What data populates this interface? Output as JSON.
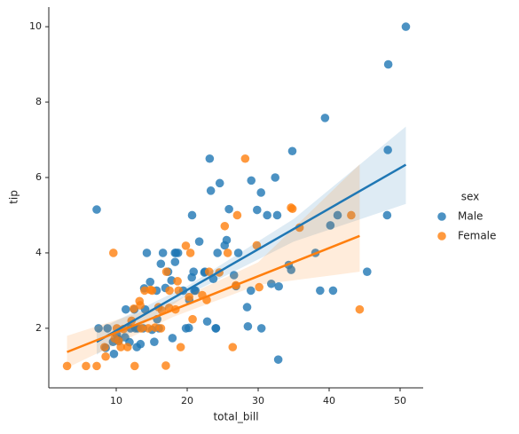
{
  "chart_data": {
    "type": "scatter",
    "x_label": "total_bill",
    "y_label": "tip",
    "legend_title": "sex",
    "legend_position": "right",
    "xlim": [
      0.5,
      53.25
    ],
    "ylim": [
      0.42,
      10.52
    ],
    "xticks": [
      10,
      20,
      30,
      40,
      50
    ],
    "yticks": [
      2,
      4,
      6,
      8,
      10
    ],
    "series": [
      {
        "name": "Male",
        "color": "#1f77b4",
        "x": [
          50.81,
          48.33,
          48.27,
          48.17,
          39.42,
          32.4,
          34.81,
          29.03,
          30.46,
          7.25,
          23.33,
          23.17,
          24.59,
          25.56,
          25.89,
          30.4,
          31.27,
          32.68,
          28.55,
          40.55,
          38.73,
          38.07,
          45.35,
          34.3,
          34.65,
          41.19,
          40.17,
          32.83,
          31.85,
          32.9,
          28.44,
          29.85,
          24.27,
          22.82,
          21.01,
          20.65,
          20.23,
          18.29,
          18.43,
          17.78,
          16.29,
          15.04,
          14.78,
          13.94,
          12.69,
          11.87,
          10.27,
          9.55,
          8.77,
          10.07,
          12.02,
          13.81,
          15.77,
          16.93,
          19.44,
          20.29,
          21.16,
          22.42,
          23.68,
          24.06,
          26.88,
          27.2,
          28.97,
          17.31,
          15.69,
          13.0,
          11.24,
          7.51,
          10.34,
          12.54,
          14.07,
          16.58,
          18.28,
          19.82,
          21.7,
          24.01,
          26.59,
          20.69,
          17.92,
          15.36,
          13.42,
          11.35,
          9.68,
          8.52,
          12.9,
          14.31,
          16.0,
          18.71,
          20.9,
          22.49,
          25.28
        ],
        "values": [
          10,
          9,
          6.73,
          5,
          7.58,
          6,
          6.7,
          5.92,
          2,
          5.15,
          5.65,
          6.5,
          5.85,
          4.34,
          5.16,
          5.6,
          5,
          5,
          2.05,
          3,
          3,
          4,
          3.5,
          3.68,
          3.55,
          5,
          4.73,
          1.17,
          3.18,
          3.11,
          2.56,
          5.14,
          4.0,
          2.18,
          3.0,
          3.35,
          2.01,
          3.76,
          4.0,
          3.27,
          3.71,
          1.96,
          3.23,
          3.06,
          2.0,
          1.63,
          1.71,
          1.64,
          2.0,
          1.83,
          2.0,
          2.0,
          2.24,
          3.07,
          3.0,
          2.75,
          3.0,
          3.48,
          3.31,
          2.0,
          3.12,
          4.0,
          3.0,
          3.5,
          3.0,
          2.0,
          1.76,
          2.0,
          1.66,
          2.5,
          2.5,
          4.0,
          4.0,
          2.0,
          4.3,
          2.0,
          3.41,
          5.0,
          1.74,
          1.64,
          1.58,
          2.5,
          1.32,
          1.48,
          1.5,
          4.0,
          2.0,
          4.0,
          3.5,
          3.5,
          4.2
        ],
        "fit": {
          "x": [
            7.25,
            50.81
          ],
          "y": [
            1.64,
            6.34
          ]
        },
        "band": {
          "x": [
            7.25,
            20,
            35,
            50.81
          ],
          "upper": [
            1.95,
            3.12,
            4.9,
            7.35
          ],
          "lower": [
            1.3,
            2.88,
            4.3,
            5.3
          ]
        }
      },
      {
        "name": "Female",
        "color": "#ff7f0e",
        "x": [
          3.07,
          5.75,
          7.25,
          9.6,
          44.3,
          43.11,
          35.83,
          34.63,
          28.17,
          26.86,
          29.8,
          30.14,
          27.05,
          25.71,
          26.41,
          16.99,
          10.33,
          14.83,
          12.6,
          18.78,
          25.29,
          34.83,
          24.52,
          22.75,
          20.76,
          19.81,
          18.35,
          17.46,
          16.45,
          15.48,
          14.52,
          13.39,
          12.48,
          11.59,
          10.65,
          9.78,
          8.51,
          13.28,
          15.06,
          16.31,
          17.51,
          19.08,
          20.27,
          22.12,
          23.1,
          11.02,
          12.16,
          14.0,
          15.95,
          17.07,
          18.64,
          20.45,
          8.35,
          10.09,
          13.51
        ],
        "values": [
          1,
          1,
          1,
          4,
          2.5,
          5,
          4.67,
          5.2,
          6.5,
          3.14,
          4.2,
          3.09,
          5,
          4,
          1.5,
          1.01,
          1.67,
          3.02,
          1,
          3,
          4.71,
          5.17,
          3.48,
          2.75,
          2.24,
          4.19,
          2.5,
          2.54,
          2.47,
          2.02,
          2.0,
          2.61,
          2.52,
          1.5,
          1.5,
          1.73,
          1.25,
          2.72,
          3.0,
          2.0,
          3.0,
          1.5,
          2.83,
          2.88,
          3.5,
          1.98,
          2.2,
          3.0,
          2.56,
          3.5,
          3.25,
          4.0,
          1.5,
          2.0,
          2.0
        ],
        "fit": {
          "x": [
            3.07,
            44.3
          ],
          "y": [
            1.37,
            4.45
          ]
        },
        "band": {
          "x": [
            3.07,
            18,
            30,
            44.3
          ],
          "upper": [
            1.8,
            2.7,
            3.75,
            6.35
          ],
          "lower": [
            0.95,
            2.3,
            3.15,
            3.5
          ]
        }
      }
    ]
  }
}
